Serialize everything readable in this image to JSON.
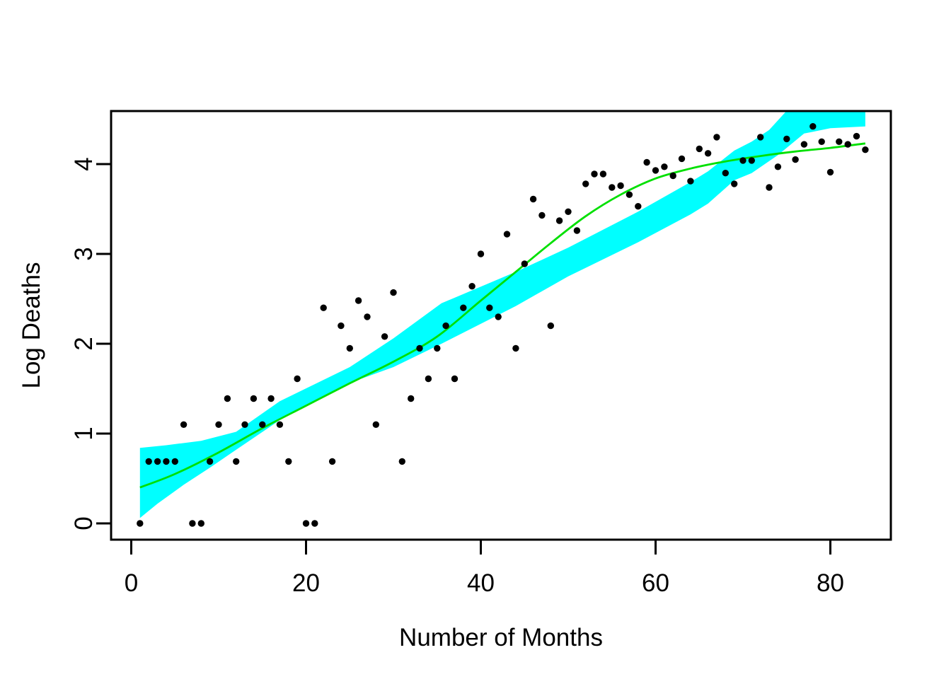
{
  "chart_data": {
    "type": "scatter",
    "title": "",
    "xlabel": "Number of Months",
    "ylabel": "Log Deaths",
    "x_ticks": [
      0,
      20,
      40,
      60,
      80
    ],
    "y_ticks": [
      0,
      1,
      2,
      3,
      4
    ],
    "xlim": [
      -2.3,
      87.0
    ],
    "ylim": [
      -0.18,
      4.59
    ],
    "grid": false,
    "legend": "none",
    "background_color": "#ffffff",
    "axis_color": "#000000",
    "point_color": "#000000",
    "smooth_line_color": "#00e000",
    "band_color": "#00ffff",
    "points": [
      [
        1,
        0.0
      ],
      [
        2,
        0.69
      ],
      [
        3,
        0.69
      ],
      [
        4,
        0.69
      ],
      [
        5,
        0.69
      ],
      [
        6,
        1.1
      ],
      [
        7,
        0.0
      ],
      [
        8,
        0.0
      ],
      [
        9,
        0.69
      ],
      [
        10,
        1.1
      ],
      [
        11,
        1.39
      ],
      [
        12,
        0.69
      ],
      [
        13,
        1.1
      ],
      [
        14,
        1.39
      ],
      [
        15,
        1.1
      ],
      [
        16,
        1.39
      ],
      [
        17,
        1.1
      ],
      [
        18,
        0.69
      ],
      [
        19,
        1.61
      ],
      [
        20,
        0.0
      ],
      [
        21,
        0.0
      ],
      [
        22,
        2.4
      ],
      [
        23,
        0.69
      ],
      [
        24,
        2.2
      ],
      [
        25,
        1.95
      ],
      [
        26,
        2.48
      ],
      [
        27,
        2.3
      ],
      [
        28,
        1.1
      ],
      [
        29,
        2.08
      ],
      [
        30,
        2.57
      ],
      [
        31,
        0.69
      ],
      [
        32,
        1.39
      ],
      [
        33,
        1.95
      ],
      [
        34,
        1.61
      ],
      [
        35,
        1.95
      ],
      [
        36,
        2.2
      ],
      [
        37,
        1.61
      ],
      [
        38,
        2.4
      ],
      [
        39,
        2.64
      ],
      [
        40,
        3.0
      ],
      [
        41,
        2.4
      ],
      [
        42,
        2.3
      ],
      [
        43,
        3.22
      ],
      [
        44,
        1.95
      ],
      [
        45,
        2.89
      ],
      [
        46,
        3.61
      ],
      [
        47,
        3.43
      ],
      [
        48,
        2.2
      ],
      [
        49,
        3.37
      ],
      [
        50,
        3.47
      ],
      [
        51,
        3.26
      ],
      [
        52,
        3.78
      ],
      [
        53,
        3.89
      ],
      [
        54,
        3.89
      ],
      [
        55,
        3.74
      ],
      [
        56,
        3.76
      ],
      [
        57,
        3.66
      ],
      [
        58,
        3.53
      ],
      [
        59,
        4.02
      ],
      [
        60,
        3.93
      ],
      [
        61,
        3.97
      ],
      [
        62,
        3.87
      ],
      [
        63,
        4.06
      ],
      [
        64,
        3.81
      ],
      [
        65,
        4.17
      ],
      [
        66,
        4.12
      ],
      [
        67,
        4.3
      ],
      [
        68,
        3.9
      ],
      [
        69,
        3.78
      ],
      [
        70,
        4.04
      ],
      [
        71,
        4.04
      ],
      [
        72,
        4.3
      ],
      [
        73,
        3.74
      ],
      [
        74,
        3.97
      ],
      [
        75,
        4.28
      ],
      [
        76,
        4.05
      ],
      [
        77,
        4.22
      ],
      [
        78,
        4.42
      ],
      [
        79,
        4.25
      ],
      [
        80,
        3.91
      ],
      [
        81,
        4.25
      ],
      [
        82,
        4.22
      ],
      [
        83,
        4.31
      ],
      [
        84,
        4.16
      ]
    ],
    "smooth_line": [
      [
        1,
        0.4
      ],
      [
        5,
        0.55
      ],
      [
        10,
        0.79
      ],
      [
        15,
        1.06
      ],
      [
        20,
        1.31
      ],
      [
        25,
        1.56
      ],
      [
        30,
        1.8
      ],
      [
        35,
        2.08
      ],
      [
        40,
        2.48
      ],
      [
        45,
        2.88
      ],
      [
        48,
        3.12
      ],
      [
        52,
        3.42
      ],
      [
        56,
        3.66
      ],
      [
        60,
        3.84
      ],
      [
        64,
        3.95
      ],
      [
        68,
        4.03
      ],
      [
        72,
        4.09
      ],
      [
        76,
        4.14
      ],
      [
        80,
        4.18
      ],
      [
        84,
        4.23
      ]
    ],
    "confidence_band": {
      "upper": [
        [
          1,
          0.84
        ],
        [
          4,
          0.87
        ],
        [
          8,
          0.92
        ],
        [
          12,
          1.02
        ],
        [
          17,
          1.36
        ],
        [
          25,
          1.74
        ],
        [
          30,
          2.06
        ],
        [
          35.5,
          2.45
        ],
        [
          44,
          2.8
        ],
        [
          50,
          3.07
        ],
        [
          58,
          3.47
        ],
        [
          64,
          3.8
        ],
        [
          66,
          3.92
        ],
        [
          69,
          4.15
        ],
        [
          71,
          4.25
        ],
        [
          73,
          4.38
        ],
        [
          76,
          4.7
        ],
        [
          84,
          4.7
        ]
      ],
      "lower": [
        [
          1,
          0.06
        ],
        [
          3,
          0.22
        ],
        [
          6,
          0.43
        ],
        [
          9,
          0.62
        ],
        [
          12,
          0.82
        ],
        [
          17.3,
          1.17
        ],
        [
          24.6,
          1.55
        ],
        [
          30,
          1.74
        ],
        [
          35.5,
          2.0
        ],
        [
          44,
          2.42
        ],
        [
          50,
          2.75
        ],
        [
          58,
          3.13
        ],
        [
          64,
          3.44
        ],
        [
          66,
          3.56
        ],
        [
          69,
          3.82
        ],
        [
          71,
          3.9
        ],
        [
          74,
          4.1
        ],
        [
          77,
          4.34
        ],
        [
          80,
          4.4
        ],
        [
          84,
          4.42
        ]
      ]
    }
  }
}
